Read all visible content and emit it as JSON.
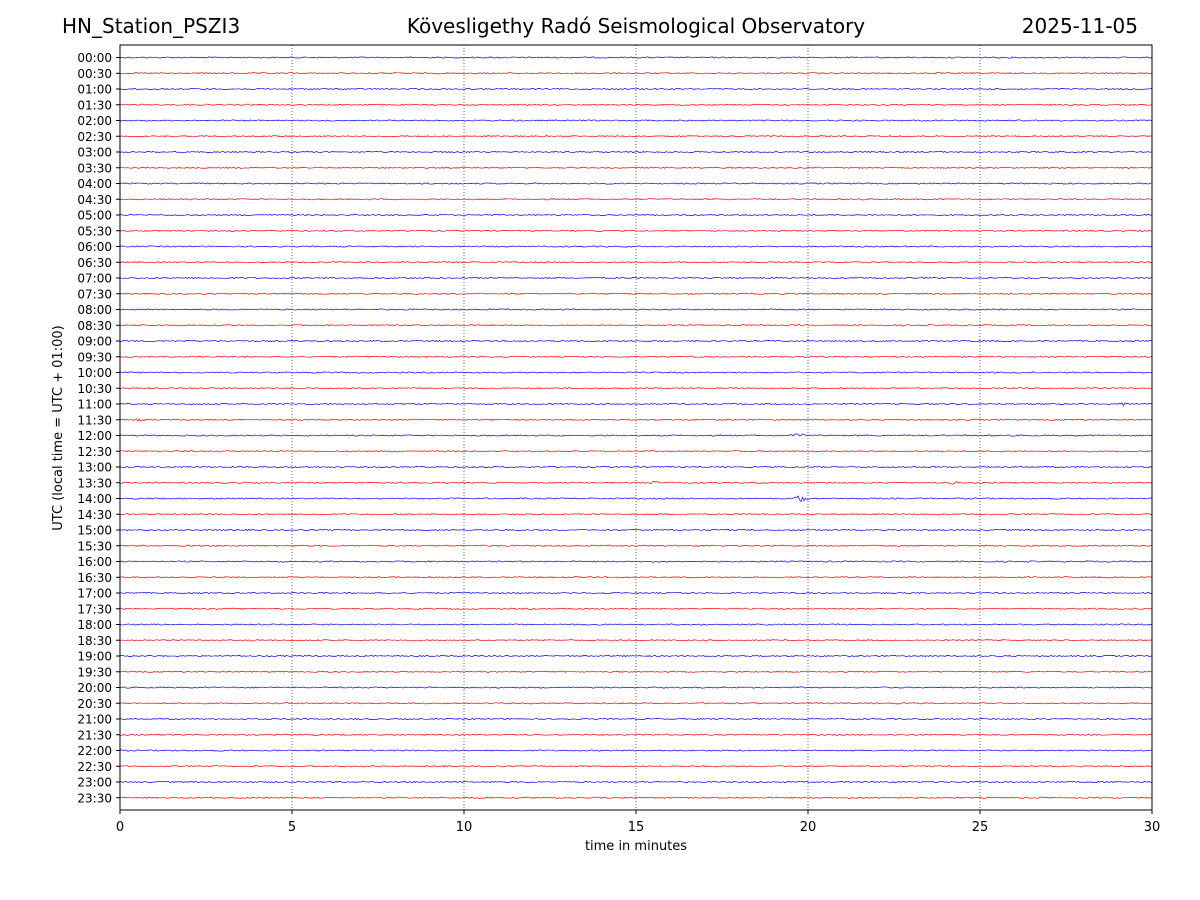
{
  "header": {
    "station": "HN_Station_PSZI3",
    "title": "Kövesligethy Radó Seismological Observatory",
    "date": "2025-11-05"
  },
  "colors": {
    "odd_trace": "#0000ff",
    "even_trace": "#ff0000",
    "axes": "#000000",
    "grid": "#000000"
  },
  "chart_data": {
    "type": "line",
    "title": "Kövesligethy Radó Seismological Observatory",
    "xlabel": "time in minutes",
    "ylabel": "UTC (local time = UTC + 01:00)",
    "xlim": [
      0,
      30
    ],
    "x_ticks": [
      0,
      5,
      10,
      15,
      20,
      25,
      30
    ],
    "grid": "vertical dotted at x ticks",
    "row_labels": [
      "00:00",
      "00:30",
      "01:00",
      "01:30",
      "02:00",
      "02:30",
      "03:00",
      "03:30",
      "04:00",
      "04:30",
      "05:00",
      "05:30",
      "06:00",
      "06:30",
      "07:00",
      "07:30",
      "08:00",
      "08:30",
      "09:00",
      "09:30",
      "10:00",
      "10:30",
      "11:00",
      "11:30",
      "12:00",
      "12:30",
      "13:00",
      "13:30",
      "14:00",
      "14:30",
      "15:00",
      "15:30",
      "16:00",
      "16:30",
      "17:00",
      "17:30",
      "18:00",
      "18:30",
      "19:00",
      "19:30",
      "20:00",
      "20:30",
      "21:00",
      "21:30",
      "22:00",
      "22:30",
      "23:00",
      "23:30"
    ],
    "trace_colors": [
      "blue",
      "red"
    ],
    "events": [
      {
        "row": "11:30",
        "minute": 0.5,
        "amplitude": 0.2
      },
      {
        "row": "12:00",
        "minute": 19.7,
        "amplitude": 0.35
      },
      {
        "row": "13:30",
        "minute": 15.5,
        "amplitude": 0.25
      },
      {
        "row": "13:30",
        "minute": 24.2,
        "amplitude": 0.3
      },
      {
        "row": "14:00",
        "minute": 19.8,
        "amplitude": 0.6
      },
      {
        "row": "11:00",
        "minute": 29.2,
        "amplitude": 0.2
      }
    ]
  }
}
